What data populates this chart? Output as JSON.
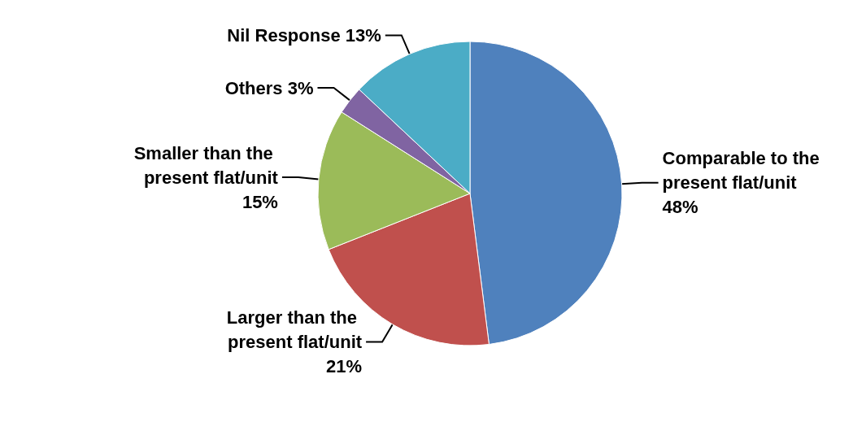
{
  "chart_data": {
    "type": "pie",
    "categories": [
      "Comparable to the present flat/unit",
      "Larger than the present flat/unit",
      "Smaller than the present flat/unit",
      "Others",
      "Nil Response"
    ],
    "values": [
      48,
      21,
      15,
      3,
      13
    ],
    "value_labels": [
      "48%",
      "21%",
      "15%",
      "3%",
      "13%"
    ],
    "colors": [
      "#4f81bd",
      "#c0504d",
      "#9bbb59",
      "#8064a2",
      "#4bacc6"
    ],
    "legend": false
  }
}
